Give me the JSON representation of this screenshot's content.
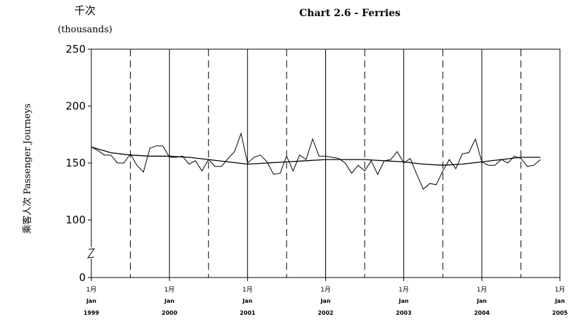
{
  "chart_data": {
    "type": "line",
    "title": "Chart 2.6 -  Ferries",
    "unit_label_cn": "千次",
    "unit_label_en": "(thousands)",
    "ylabel": "乘客人次 Passenger Journeys",
    "y_ticks": [
      "0",
      "100",
      "150",
      "200",
      "250"
    ],
    "y_axis_break": true,
    "x_ticks": [
      {
        "month": "1月",
        "mon": "Jan",
        "year": "1999"
      },
      {
        "month": "1月",
        "mon": "Jan",
        "year": "2000"
      },
      {
        "month": "1月",
        "mon": "Jan",
        "year": "2001"
      },
      {
        "month": "1月",
        "mon": "Jan",
        "year": "2002"
      },
      {
        "month": "1月",
        "mon": "Jan",
        "year": "2003"
      },
      {
        "month": "1月",
        "mon": "Jan",
        "year": "2004"
      },
      {
        "month": "1月",
        "mon": "Jan",
        "year": "2005"
      }
    ],
    "x_start": "1999-01",
    "x_end": "2005-01",
    "series": [
      {
        "style": "actual",
        "x": [
          "1999-01",
          "1999-02",
          "1999-03",
          "1999-04",
          "1999-05",
          "1999-06",
          "1999-07",
          "1999-08",
          "1999-09",
          "1999-10",
          "1999-11",
          "1999-12",
          "2000-01",
          "2000-02",
          "2000-03",
          "2000-04",
          "2000-05",
          "2000-06",
          "2000-07",
          "2000-08",
          "2000-09",
          "2000-10",
          "2000-11",
          "2000-12",
          "2001-01",
          "2001-02",
          "2001-03",
          "2001-04",
          "2001-05",
          "2001-06",
          "2001-07",
          "2001-08",
          "2001-09",
          "2001-10",
          "2001-11",
          "2001-12",
          "2002-01",
          "2002-02",
          "2002-03",
          "2002-04",
          "2002-05",
          "2002-06",
          "2002-07",
          "2002-08",
          "2002-09",
          "2002-10",
          "2002-11",
          "2002-12",
          "2003-01",
          "2003-02",
          "2003-03",
          "2003-04",
          "2003-05",
          "2003-06",
          "2003-07",
          "2003-08",
          "2003-09",
          "2003-10",
          "2003-11",
          "2003-12",
          "2004-01",
          "2004-02",
          "2004-03",
          "2004-04",
          "2004-05",
          "2004-06",
          "2004-07",
          "2004-08",
          "2004-09",
          "2004-10"
        ],
        "values": [
          164,
          161,
          157,
          157,
          150,
          150,
          158,
          148,
          142,
          163,
          165,
          165,
          155,
          155,
          156,
          149,
          152,
          143,
          153,
          147,
          147,
          154,
          160,
          176,
          150,
          155,
          157,
          151,
          140,
          141,
          156,
          143,
          157,
          153,
          171,
          156,
          156,
          155,
          154,
          150,
          141,
          148,
          143,
          152,
          140,
          152,
          153,
          160,
          150,
          154,
          140,
          127,
          132,
          131,
          143,
          153,
          145,
          158,
          159,
          171,
          151,
          148,
          148,
          153,
          150,
          156,
          154,
          147,
          148,
          153
        ]
      },
      {
        "style": "trend",
        "x": [
          "1999-01",
          "1999-04",
          "1999-07",
          "1999-10",
          "2000-01",
          "2000-04",
          "2000-07",
          "2000-10",
          "2001-01",
          "2001-04",
          "2001-07",
          "2001-10",
          "2002-01",
          "2002-04",
          "2002-07",
          "2002-10",
          "2003-01",
          "2003-04",
          "2003-07",
          "2003-10",
          "2004-01",
          "2004-04",
          "2004-07",
          "2004-10"
        ],
        "values": [
          164,
          159,
          157,
          156,
          156,
          155,
          153,
          151,
          149,
          150,
          151,
          152,
          153,
          153,
          153,
          152,
          151,
          149,
          148,
          149,
          151,
          153,
          155,
          155
        ]
      }
    ]
  }
}
